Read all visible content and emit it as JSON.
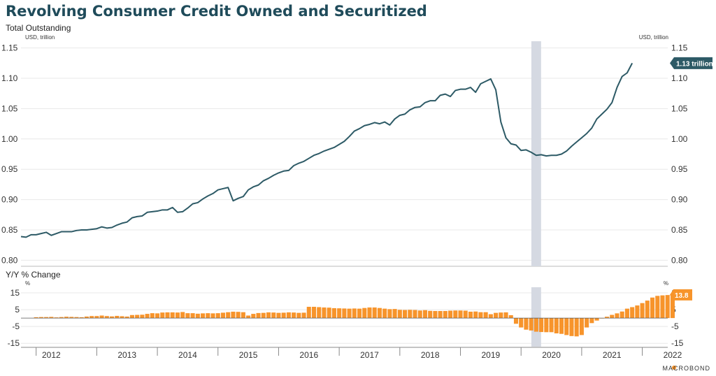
{
  "title": "Revolving Consumer Credit Owned and Securitized",
  "colors": {
    "title": "#1f4b5a",
    "line": "#2d5a66",
    "bar": "#f7942b",
    "recession": "#d5d9e2",
    "grid": "#e8e8e8",
    "line_badge": "#2d5a66",
    "bar_badge": "#f7942b"
  },
  "brand": "MACROBOND",
  "x_axis": {
    "years": [
      "2012",
      "2013",
      "2014",
      "2015",
      "2016",
      "2017",
      "2018",
      "2019",
      "2020",
      "2021",
      "2022"
    ]
  },
  "chart_data": [
    {
      "type": "line",
      "subtitle": "Total Outstanding",
      "unit_left": "USD, trillion",
      "unit_right": "USD, trillion",
      "ylim": [
        0.79,
        1.16
      ],
      "yticks": [
        0.8,
        0.85,
        0.9,
        0.95,
        1.0,
        1.05,
        1.1,
        1.15
      ],
      "ytick_labels": [
        "0.80",
        "0.85",
        "0.90",
        "0.95",
        "1.00",
        "1.05",
        "1.10",
        "1.15"
      ],
      "x_start": "2011-10",
      "frequency": "monthly",
      "recession": {
        "start": 2020.17,
        "end": 2020.33
      },
      "end_label": "1.13 trillion",
      "series": [
        {
          "name": "Revolving Consumer Credit",
          "values": [
            0.839,
            0.838,
            0.842,
            0.842,
            0.844,
            0.846,
            0.841,
            0.844,
            0.847,
            0.847,
            0.847,
            0.849,
            0.85,
            0.85,
            0.851,
            0.852,
            0.855,
            0.853,
            0.854,
            0.858,
            0.861,
            0.863,
            0.87,
            0.872,
            0.873,
            0.879,
            0.88,
            0.881,
            0.883,
            0.883,
            0.887,
            0.879,
            0.88,
            0.886,
            0.893,
            0.895,
            0.901,
            0.906,
            0.91,
            0.916,
            0.918,
            0.92,
            0.898,
            0.902,
            0.905,
            0.916,
            0.921,
            0.924,
            0.931,
            0.935,
            0.94,
            0.944,
            0.947,
            0.948,
            0.956,
            0.96,
            0.963,
            0.968,
            0.973,
            0.976,
            0.98,
            0.983,
            0.986,
            0.991,
            0.996,
            1.004,
            1.013,
            1.017,
            1.022,
            1.024,
            1.027,
            1.025,
            1.028,
            1.023,
            1.033,
            1.039,
            1.041,
            1.048,
            1.052,
            1.053,
            1.06,
            1.063,
            1.063,
            1.072,
            1.074,
            1.07,
            1.08,
            1.082,
            1.082,
            1.085,
            1.077,
            1.091,
            1.095,
            1.099,
            1.081,
            1.028,
            1.002,
            0.992,
            0.99,
            0.981,
            0.982,
            0.978,
            0.973,
            0.974,
            0.972,
            0.973,
            0.973,
            0.975,
            0.98,
            0.988,
            0.995,
            1.002,
            1.009,
            1.018,
            1.033,
            1.041,
            1.049,
            1.06,
            1.085,
            1.103,
            1.109,
            1.125
          ]
        }
      ]
    },
    {
      "type": "bar",
      "subtitle": "Y/Y % Change",
      "unit_left": "%",
      "unit_right": "%",
      "ylim": [
        -17,
        17.5
      ],
      "yticks": [
        15,
        5,
        -5,
        -15
      ],
      "ytick_labels": [
        "15",
        "5",
        "-5",
        "-15"
      ],
      "x_start": "2012-01",
      "frequency": "monthly",
      "recession": {
        "start": 2020.17,
        "end": 2020.33
      },
      "end_label": "13.8",
      "series": [
        {
          "name": "Y/Y % Change",
          "values": [
            0.5,
            0.6,
            0.6,
            0.7,
            0.4,
            0.6,
            0.8,
            0.7,
            0.6,
            0.5,
            0.9,
            1.2,
            1.2,
            1.5,
            1.2,
            1.0,
            1.3,
            1.1,
            0.9,
            1.8,
            1.9,
            2.0,
            2.5,
            2.9,
            2.8,
            3.3,
            3.4,
            3.4,
            3.3,
            3.6,
            2.9,
            2.9,
            2.6,
            2.8,
            2.9,
            2.8,
            2.9,
            3.2,
            3.5,
            3.8,
            3.7,
            3.5,
            1.5,
            2.5,
            3.0,
            3.1,
            3.4,
            3.3,
            3.1,
            3.2,
            3.4,
            3.3,
            3.1,
            3.2,
            6.7,
            6.7,
            6.5,
            6.3,
            6.2,
            5.9,
            5.8,
            5.7,
            5.6,
            5.7,
            5.6,
            6.0,
            6.3,
            6.3,
            6.0,
            5.6,
            5.3,
            5.4,
            4.9,
            4.8,
            4.9,
            4.8,
            4.5,
            4.7,
            4.3,
            4.2,
            4.2,
            4.2,
            4.4,
            4.5,
            4.5,
            4.4,
            3.8,
            3.9,
            3.5,
            3.5,
            2.3,
            3.1,
            3.3,
            3.4,
            1.7,
            -3.4,
            -5.6,
            -6.9,
            -7.4,
            -8.1,
            -8.3,
            -8.4,
            -8.4,
            -9.1,
            -9.4,
            -10.1,
            -10.7,
            -10.9,
            -10.1,
            -5.6,
            -3.0,
            -1.5,
            0.0,
            0.8,
            1.9,
            2.8,
            3.9,
            5.6,
            6.5,
            7.5,
            8.9,
            10.4,
            12.2,
            13.2,
            13.5,
            13.7,
            13.8
          ]
        }
      ]
    }
  ]
}
